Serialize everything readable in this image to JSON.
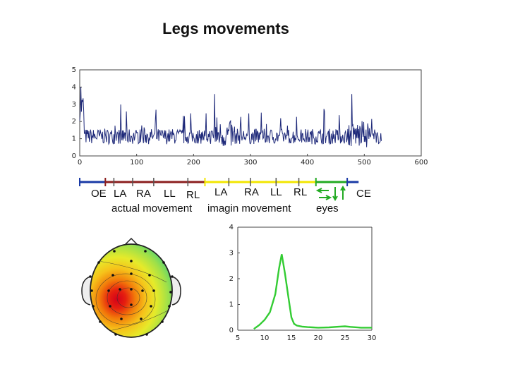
{
  "page_title": "Legs movements",
  "colors": {
    "trace": "#1f2a7a",
    "spectrum": "#33cc33",
    "blue": "#1a3aa6",
    "darkred": "#8b1e1e",
    "yellow": "#f2e600",
    "green": "#22aa22"
  },
  "chart_data": [
    {
      "type": "line",
      "title": "",
      "xlim": [
        0,
        600
      ],
      "ylim": [
        0,
        5
      ],
      "x_ticks": [
        "0",
        "100",
        "200",
        "300",
        "400",
        "500",
        "600"
      ],
      "y_ticks": [
        "0",
        "1",
        "2",
        "3",
        "4",
        "5"
      ],
      "x_end": 530,
      "baseline": 1.0
    },
    {
      "type": "line",
      "title": "",
      "xlim": [
        5,
        30
      ],
      "ylim": [
        0,
        4
      ],
      "x_ticks": [
        "5",
        "10",
        "15",
        "20",
        "25",
        "30"
      ],
      "y_ticks": [
        "0",
        "1",
        "2",
        "3",
        "4"
      ],
      "series": [
        {
          "x": [
            8,
            9,
            10,
            11,
            12,
            12.7,
            13.2,
            13.8,
            14.5,
            15,
            15.5,
            16,
            17,
            18,
            19,
            20,
            22,
            24,
            25,
            26,
            28,
            30
          ],
          "y": [
            0.05,
            0.2,
            0.4,
            0.7,
            1.4,
            2.4,
            2.95,
            2.2,
            1.2,
            0.5,
            0.25,
            0.18,
            0.14,
            0.12,
            0.11,
            0.1,
            0.11,
            0.14,
            0.15,
            0.13,
            0.1,
            0.1
          ]
        }
      ]
    }
  ],
  "timeline": {
    "segments": [
      {
        "color": "#1a3aa6",
        "from": 0,
        "to": 45
      },
      {
        "color": "#8b1e1e",
        "from": 45,
        "to": 220
      },
      {
        "color": "#f2e600",
        "from": 220,
        "to": 415
      },
      {
        "color": "#22aa22",
        "from": 415,
        "to": 470
      },
      {
        "color": "#1a3aa6",
        "from": 470,
        "to": 490
      }
    ],
    "labels": {
      "oe": "OE",
      "la1": "LA",
      "ra1": "RA",
      "ll1": "LL",
      "rl1": "RL",
      "la2": "LA",
      "ra2": "RA",
      "ll2": "LL",
      "rl2": "RL",
      "ce": "CE",
      "actual": "actual movement",
      "imagin": "imagin movement",
      "eyes": "eyes"
    }
  },
  "topomap": {
    "colormap": "jet",
    "peak_location": "left-central"
  }
}
